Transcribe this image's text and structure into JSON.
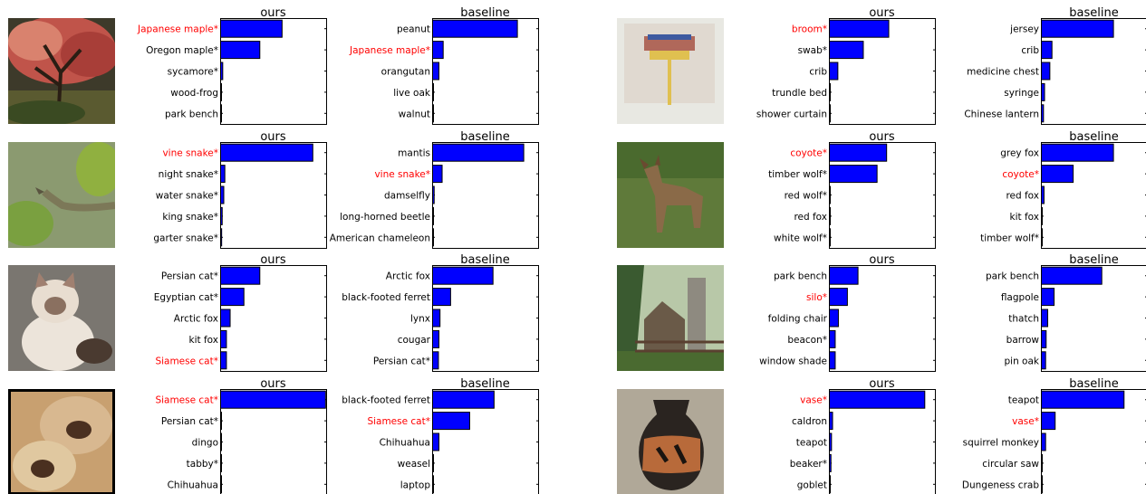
{
  "colors": {
    "bar": "#0000ff",
    "bar_edge": "#000000",
    "highlight": "#ff0000",
    "label": "#000000"
  },
  "panel_titles": {
    "ours": "ours",
    "baseline": "baseline"
  },
  "images": [
    {
      "semantic": "japanese-maple-tree-photo"
    },
    {
      "semantic": "broom-photo"
    },
    {
      "semantic": "vine-snake-photo"
    },
    {
      "semantic": "coyote-photo"
    },
    {
      "semantic": "persian-cat-photo"
    },
    {
      "semantic": "silo-barn-photo"
    },
    {
      "semantic": "siamese-cats-photo"
    },
    {
      "semantic": "greek-vase-photo"
    }
  ],
  "chart_data": [
    {
      "type": "bar",
      "orientation": "horizontal",
      "title": "ours",
      "xlim": [
        0,
        1
      ],
      "categories": [
        "Japanese maple*",
        "Oregon maple*",
        "sycamore*",
        "wood-frog",
        "park bench"
      ],
      "values": [
        0.58,
        0.37,
        0.02,
        0.004,
        0.002
      ],
      "highlight": [
        true,
        false,
        false,
        false,
        false
      ]
    },
    {
      "type": "bar",
      "orientation": "horizontal",
      "title": "baseline",
      "xlim": [
        0,
        1
      ],
      "categories": [
        "peanut",
        "Japanese maple*",
        "orangutan",
        "live oak",
        "walnut"
      ],
      "values": [
        0.8,
        0.1,
        0.06,
        0.006,
        0.004
      ],
      "highlight": [
        false,
        true,
        false,
        false,
        false
      ]
    },
    {
      "type": "bar",
      "orientation": "horizontal",
      "title": "ours",
      "xlim": [
        0,
        1
      ],
      "categories": [
        "broom*",
        "swab*",
        "crib",
        "trundle bed",
        "shower curtain"
      ],
      "values": [
        0.56,
        0.32,
        0.08,
        0.005,
        0.003
      ],
      "highlight": [
        true,
        false,
        false,
        false,
        false
      ]
    },
    {
      "type": "bar",
      "orientation": "horizontal",
      "title": "baseline",
      "xlim": [
        0,
        1
      ],
      "categories": [
        "jersey",
        "crib",
        "medicine chest",
        "syringe",
        "Chinese lantern"
      ],
      "values": [
        0.68,
        0.1,
        0.08,
        0.03,
        0.02
      ],
      "highlight": [
        false,
        false,
        false,
        false,
        false
      ]
    },
    {
      "type": "bar",
      "orientation": "horizontal",
      "title": "ours",
      "xlim": [
        0,
        1
      ],
      "categories": [
        "vine snake*",
        "night snake*",
        "water snake*",
        "king snake*",
        "garter snake*"
      ],
      "values": [
        0.87,
        0.04,
        0.03,
        0.015,
        0.01
      ],
      "highlight": [
        true,
        false,
        false,
        false,
        false
      ]
    },
    {
      "type": "bar",
      "orientation": "horizontal",
      "title": "baseline",
      "xlim": [
        0,
        1
      ],
      "categories": [
        "mantis",
        "vine snake*",
        "damselfly",
        "long-horned beetle",
        "American chameleon"
      ],
      "values": [
        0.86,
        0.09,
        0.015,
        0.008,
        0.005
      ],
      "highlight": [
        false,
        true,
        false,
        false,
        false
      ]
    },
    {
      "type": "bar",
      "orientation": "horizontal",
      "title": "ours",
      "xlim": [
        0,
        1
      ],
      "categories": [
        "coyote*",
        "timber wolf*",
        "red wolf*",
        "red fox",
        "white wolf*"
      ],
      "values": [
        0.54,
        0.45,
        0.006,
        0.004,
        0.002
      ],
      "highlight": [
        true,
        false,
        false,
        false,
        false
      ]
    },
    {
      "type": "bar",
      "orientation": "horizontal",
      "title": "baseline",
      "xlim": [
        0,
        1
      ],
      "categories": [
        "grey fox",
        "coyote*",
        "red fox",
        "kit fox",
        "timber wolf*"
      ],
      "values": [
        0.68,
        0.3,
        0.025,
        0.006,
        0.004
      ],
      "highlight": [
        false,
        true,
        false,
        false,
        false
      ]
    },
    {
      "type": "bar",
      "orientation": "horizontal",
      "title": "ours",
      "xlim": [
        0,
        1
      ],
      "categories": [
        "Persian cat*",
        "Egyptian cat*",
        "Arctic fox",
        "kit fox",
        "Siamese cat*"
      ],
      "values": [
        0.37,
        0.22,
        0.09,
        0.055,
        0.055
      ],
      "highlight": [
        false,
        false,
        false,
        false,
        true
      ]
    },
    {
      "type": "bar",
      "orientation": "horizontal",
      "title": "baseline",
      "xlim": [
        0,
        1
      ],
      "categories": [
        "Arctic fox",
        "black-footed ferret",
        "lynx",
        "cougar",
        "Persian cat*"
      ],
      "values": [
        0.57,
        0.17,
        0.07,
        0.06,
        0.055
      ],
      "highlight": [
        false,
        false,
        false,
        false,
        false
      ]
    },
    {
      "type": "bar",
      "orientation": "horizontal",
      "title": "ours",
      "xlim": [
        0,
        1
      ],
      "categories": [
        "park bench",
        "silo*",
        "folding chair",
        "beacon*",
        "window shade"
      ],
      "values": [
        0.27,
        0.17,
        0.085,
        0.055,
        0.055
      ],
      "highlight": [
        false,
        true,
        false,
        false,
        false
      ]
    },
    {
      "type": "bar",
      "orientation": "horizontal",
      "title": "baseline",
      "xlim": [
        0,
        1
      ],
      "categories": [
        "park bench",
        "flagpole",
        "thatch",
        "barrow",
        "pin oak"
      ],
      "values": [
        0.57,
        0.12,
        0.06,
        0.045,
        0.04
      ],
      "highlight": [
        false,
        false,
        false,
        false,
        false
      ]
    },
    {
      "type": "bar",
      "orientation": "horizontal",
      "title": "ours",
      "xlim": [
        0,
        1
      ],
      "categories": [
        "Siamese cat*",
        "Persian cat*",
        "dingo",
        "tabby*",
        "Chihuahua"
      ],
      "values": [
        0.99,
        0.005,
        0.002,
        0.002,
        0.001
      ],
      "highlight": [
        true,
        false,
        false,
        false,
        false
      ]
    },
    {
      "type": "bar",
      "orientation": "horizontal",
      "title": "baseline",
      "xlim": [
        0,
        1
      ],
      "categories": [
        "black-footed ferret",
        "Siamese cat*",
        "Chihuahua",
        "weasel",
        "laptop"
      ],
      "values": [
        0.58,
        0.35,
        0.06,
        0.006,
        0.004
      ],
      "highlight": [
        false,
        true,
        false,
        false,
        false
      ]
    },
    {
      "type": "bar",
      "orientation": "horizontal",
      "title": "ours",
      "xlim": [
        0,
        1
      ],
      "categories": [
        "vase*",
        "caldron",
        "teapot",
        "beaker*",
        "goblet"
      ],
      "values": [
        0.9,
        0.03,
        0.02,
        0.015,
        0.005
      ],
      "highlight": [
        true,
        false,
        false,
        false,
        false
      ]
    },
    {
      "type": "bar",
      "orientation": "horizontal",
      "title": "baseline",
      "xlim": [
        0,
        1
      ],
      "categories": [
        "teapot",
        "vase*",
        "squirrel monkey",
        "circular saw",
        "Dungeness crab"
      ],
      "values": [
        0.78,
        0.13,
        0.04,
        0.006,
        0.004
      ],
      "highlight": [
        false,
        true,
        false,
        false,
        false
      ]
    }
  ]
}
